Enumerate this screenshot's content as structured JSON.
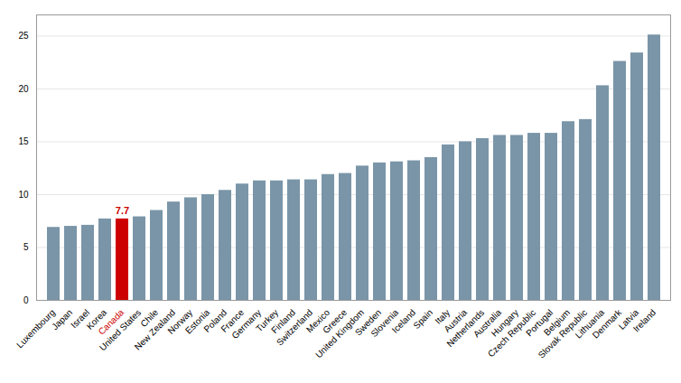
{
  "chart_data": {
    "type": "bar",
    "categories": [
      "Luxembourg",
      "Japan",
      "Israel",
      "Korea",
      "Canada",
      "United States",
      "Chile",
      "New Zealand",
      "Norway",
      "Estonia",
      "Poland",
      "France",
      "Germany",
      "Turkey",
      "Finland",
      "Switzerland",
      "Mexico",
      "Greece",
      "United Kingdom",
      "Sweden",
      "Slovenia",
      "Iceland",
      "Spain",
      "Italy",
      "Austria",
      "Netherlands",
      "Australia",
      "Hungary",
      "Czech Republic",
      "Portugal",
      "Belgium",
      "Slovak Republic",
      "Lithuania",
      "Denmark",
      "Latvia",
      "Ireland"
    ],
    "values": [
      6.9,
      7.0,
      7.1,
      7.7,
      7.7,
      7.9,
      8.5,
      9.3,
      9.7,
      10.0,
      10.4,
      11.0,
      11.3,
      11.3,
      11.4,
      11.4,
      11.9,
      12.0,
      12.7,
      13.0,
      13.1,
      13.2,
      13.5,
      14.7,
      15.0,
      15.3,
      15.6,
      15.6,
      15.8,
      15.8,
      16.9,
      17.1,
      20.3,
      22.6,
      23.4,
      25.1
    ],
    "colors": [
      "#7a95a8",
      "#7a95a8",
      "#7a95a8",
      "#7a95a8",
      "#cc0000",
      "#7a95a8",
      "#7a95a8",
      "#7a95a8",
      "#7a95a8",
      "#7a95a8",
      "#7a95a8",
      "#7a95a8",
      "#7a95a8",
      "#7a95a8",
      "#7a95a8",
      "#7a95a8",
      "#7a95a8",
      "#7a95a8",
      "#7a95a8",
      "#7a95a8",
      "#7a95a8",
      "#7a95a8",
      "#7a95a8",
      "#7a95a8",
      "#7a95a8",
      "#7a95a8",
      "#7a95a8",
      "#7a95a8",
      "#7a95a8",
      "#7a95a8",
      "#7a95a8",
      "#7a95a8",
      "#7a95a8",
      "#7a95a8",
      "#7a95a8",
      "#7a95a8"
    ],
    "annotations": [
      {
        "text": "7.7",
        "category": "Canada",
        "value": 7.7,
        "color": "#cc0000"
      }
    ],
    "ylim": [
      0,
      27
    ],
    "yticks": [
      0,
      5,
      10,
      15,
      20,
      25
    ],
    "grid": true
  }
}
